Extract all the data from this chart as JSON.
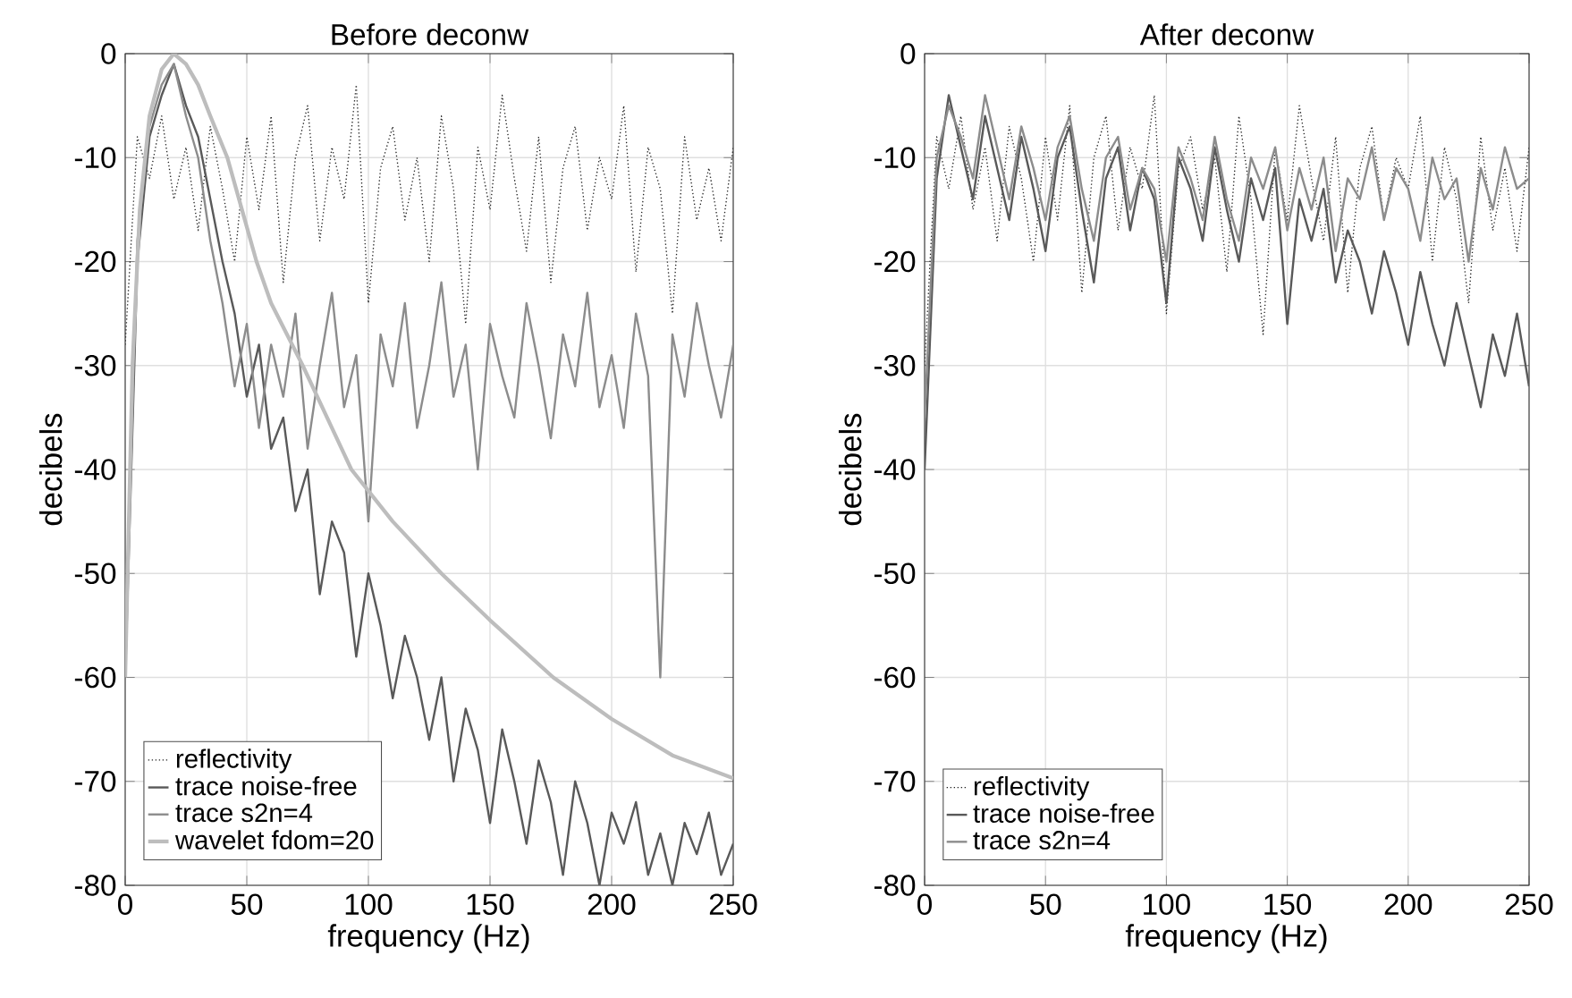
{
  "chart_data": [
    {
      "type": "line",
      "title": "Before deconw",
      "xlabel": "frequency (Hz)",
      "ylabel": "decibels",
      "x": [
        0,
        5,
        10,
        15,
        20,
        25,
        30,
        35,
        40,
        45,
        50,
        55,
        60,
        65,
        70,
        75,
        80,
        85,
        90,
        95,
        100,
        105,
        110,
        115,
        120,
        125,
        130,
        135,
        140,
        145,
        150,
        155,
        160,
        165,
        170,
        175,
        180,
        185,
        190,
        195,
        200,
        205,
        210,
        215,
        220,
        225,
        230,
        235,
        240,
        245,
        250
      ],
      "series": [
        {
          "name": "reflectivity",
          "color": "#222222",
          "line_style": "dotted",
          "values": [
            -28,
            -8,
            -12,
            -6,
            -14,
            -9,
            -17,
            -7,
            -13,
            -20,
            -8,
            -15,
            -6,
            -22,
            -10,
            -5,
            -18,
            -9,
            -14,
            -3,
            -24,
            -11,
            -7,
            -16,
            -10,
            -20,
            -6,
            -13,
            -26,
            -9,
            -15,
            -4,
            -12,
            -19,
            -8,
            -22,
            -11,
            -7,
            -17,
            -10,
            -14,
            -5,
            -21,
            -9,
            -13,
            -25,
            -8,
            -16,
            -11,
            -18,
            -9
          ]
        },
        {
          "name": "trace noise-free",
          "color": "#595959",
          "values": [
            -60,
            -20,
            -8,
            -4,
            -1,
            -5,
            -8,
            -14,
            -20,
            -25,
            -33,
            -28,
            -38,
            -35,
            -44,
            -40,
            -52,
            -45,
            -48,
            -58,
            -50,
            -55,
            -62,
            -56,
            -60,
            -66,
            -60,
            -70,
            -63,
            -67,
            -74,
            -65,
            -70,
            -76,
            -68,
            -72,
            -79,
            -70,
            -74,
            -80,
            -73,
            -76,
            -72,
            -79,
            -75,
            -80,
            -74,
            -77,
            -73,
            -79,
            -76
          ]
        },
        {
          "name": "trace s2n=4",
          "color": "#8c8c8c",
          "values": [
            -58,
            -18,
            -7,
            -3,
            -1,
            -6,
            -10,
            -18,
            -24,
            -32,
            -26,
            -36,
            -28,
            -33,
            -25,
            -38,
            -30,
            -23,
            -34,
            -29,
            -45,
            -27,
            -32,
            -24,
            -36,
            -30,
            -22,
            -33,
            -28,
            -40,
            -26,
            -31,
            -35,
            -24,
            -30,
            -37,
            -27,
            -32,
            -23,
            -34,
            -29,
            -36,
            -25,
            -31,
            -60,
            -27,
            -33,
            -24,
            -30,
            -35,
            -28
          ]
        },
        {
          "name": "wavelet fdom=20",
          "color": "#bdbdbd",
          "x": [
            0,
            3,
            6,
            10,
            15,
            20,
            25,
            30,
            35,
            42,
            48,
            54,
            60,
            73,
            83,
            93,
            110,
            130,
            150,
            176,
            200,
            225,
            250
          ],
          "values": [
            -60,
            -30,
            -15,
            -6,
            -1.5,
            0,
            -1,
            -3,
            -6,
            -10,
            -15,
            -20,
            -24,
            -30,
            -35,
            -40,
            -45,
            -50,
            -54.5,
            -60,
            -64,
            -67.5,
            -69.7
          ]
        }
      ],
      "xlim": [
        0,
        250
      ],
      "ylim": [
        -80,
        0
      ],
      "xticks": [
        0,
        50,
        100,
        150,
        200,
        250
      ],
      "yticks": [
        -80,
        -70,
        -60,
        -50,
        -40,
        -30,
        -20,
        -10,
        0
      ],
      "grid": true,
      "legend": "bottom left"
    },
    {
      "type": "line",
      "title": "After deconw",
      "xlabel": "frequency (Hz)",
      "ylabel": "decibels",
      "x": [
        0,
        5,
        10,
        15,
        20,
        25,
        30,
        35,
        40,
        45,
        50,
        55,
        60,
        65,
        70,
        75,
        80,
        85,
        90,
        95,
        100,
        105,
        110,
        115,
        120,
        125,
        130,
        135,
        140,
        145,
        150,
        155,
        160,
        165,
        170,
        175,
        180,
        185,
        190,
        195,
        200,
        205,
        210,
        215,
        220,
        225,
        230,
        235,
        240,
        245,
        250
      ],
      "series": [
        {
          "name": "reflectivity",
          "color": "#222222",
          "line_style": "dotted",
          "values": [
            -30,
            -8,
            -13,
            -6,
            -15,
            -9,
            -18,
            -7,
            -12,
            -20,
            -8,
            -16,
            -5,
            -23,
            -10,
            -6,
            -17,
            -9,
            -13,
            -4,
            -25,
            -11,
            -8,
            -15,
            -10,
            -21,
            -6,
            -14,
            -27,
            -9,
            -16,
            -5,
            -12,
            -18,
            -8,
            -23,
            -11,
            -7,
            -16,
            -10,
            -13,
            -6,
            -20,
            -9,
            -14,
            -24,
            -8,
            -17,
            -11,
            -19,
            -9
          ]
        },
        {
          "name": "trace noise-free",
          "color": "#595959",
          "values": [
            -40,
            -12,
            -4,
            -9,
            -14,
            -6,
            -11,
            -16,
            -8,
            -13,
            -19,
            -10,
            -7,
            -15,
            -22,
            -12,
            -9,
            -17,
            -11,
            -14,
            -24,
            -10,
            -13,
            -18,
            -9,
            -15,
            -20,
            -12,
            -16,
            -11,
            -26,
            -14,
            -18,
            -13,
            -22,
            -17,
            -20,
            -25,
            -19,
            -23,
            -28,
            -21,
            -26,
            -30,
            -24,
            -29,
            -34,
            -27,
            -31,
            -25,
            -32
          ]
        },
        {
          "name": "trace s2n=4",
          "color": "#8c8c8c",
          "values": [
            -35,
            -10,
            -5,
            -8,
            -12,
            -4,
            -9,
            -14,
            -7,
            -11,
            -16,
            -9,
            -6,
            -13,
            -18,
            -10,
            -8,
            -15,
            -11,
            -13,
            -20,
            -9,
            -12,
            -16,
            -8,
            -14,
            -18,
            -10,
            -13,
            -9,
            -17,
            -11,
            -15,
            -10,
            -19,
            -12,
            -14,
            -9,
            -16,
            -11,
            -13,
            -18,
            -10,
            -14,
            -12,
            -20,
            -11,
            -15,
            -9,
            -13,
            -12
          ]
        }
      ],
      "xlim": [
        0,
        250
      ],
      "ylim": [
        -80,
        0
      ],
      "xticks": [
        0,
        50,
        100,
        150,
        200,
        250
      ],
      "yticks": [
        -80,
        -70,
        -60,
        -50,
        -40,
        -30,
        -20,
        -10,
        0
      ],
      "grid": true,
      "legend": "bottom left"
    }
  ]
}
